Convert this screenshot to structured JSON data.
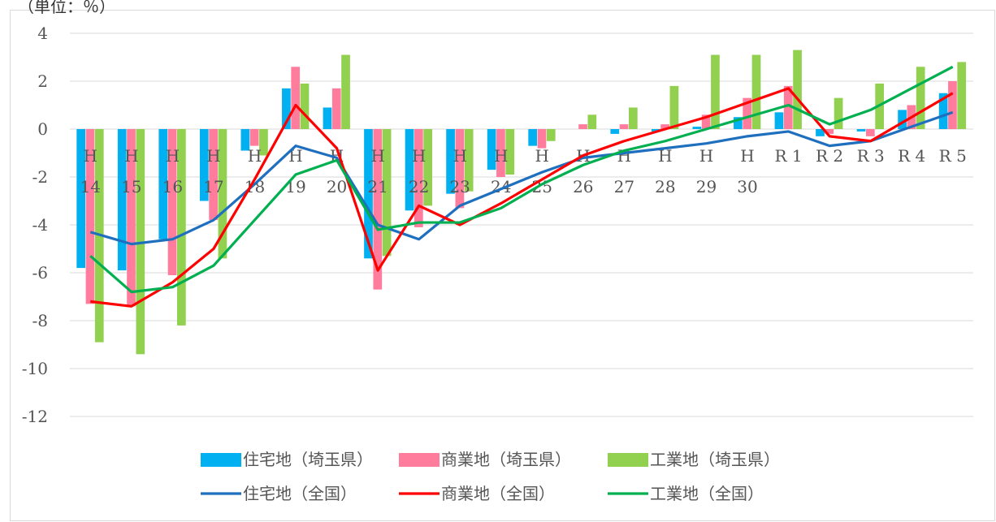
{
  "unit_label": "（単位：％）",
  "chart_data": {
    "type": "bar+line",
    "title": "",
    "xlabel": "",
    "ylabel": "",
    "ylim": [
      -12,
      4
    ],
    "yticks": [
      4,
      2,
      0,
      -2,
      -4,
      -6,
      -8,
      -10,
      -12
    ],
    "grid": true,
    "legend_position": "bottom",
    "categories": [
      [
        "H",
        "14"
      ],
      [
        "H",
        "15"
      ],
      [
        "H",
        "16"
      ],
      [
        "H",
        "17"
      ],
      [
        "H",
        "18"
      ],
      [
        "H",
        "19"
      ],
      [
        "H",
        "20"
      ],
      [
        "H",
        "21"
      ],
      [
        "H",
        "22"
      ],
      [
        "H",
        "23"
      ],
      [
        "H",
        "24"
      ],
      [
        "H",
        "25"
      ],
      [
        "H",
        "26"
      ],
      [
        "H",
        "27"
      ],
      [
        "H",
        "28"
      ],
      [
        "H",
        "29"
      ],
      [
        "H",
        "30"
      ],
      [
        "R 1",
        ""
      ],
      [
        "R 2",
        ""
      ],
      [
        "R 3",
        ""
      ],
      [
        "R 4",
        ""
      ],
      [
        "R 5",
        ""
      ]
    ],
    "bar_series": [
      {
        "name": "住宅地（埼玉県）",
        "color": "#00b0f0",
        "values": [
          -5.8,
          -5.9,
          -4.6,
          -3.0,
          -0.9,
          1.7,
          0.9,
          -5.4,
          -3.4,
          -2.7,
          -1.7,
          -0.7,
          0.0,
          -0.2,
          -0.1,
          0.1,
          0.5,
          0.7,
          -0.3,
          -0.1,
          0.8,
          1.5
        ]
      },
      {
        "name": "商業地（埼玉県）",
        "color": "#ff7c9c",
        "values": [
          -7.3,
          -7.4,
          -6.1,
          -3.8,
          -0.7,
          2.6,
          1.7,
          -6.7,
          -4.1,
          -3.3,
          -2.0,
          -0.8,
          0.2,
          0.2,
          0.2,
          0.6,
          1.3,
          1.8,
          -0.2,
          -0.3,
          1.0,
          2.0
        ]
      },
      {
        "name": "工業地（埼玉県）",
        "color": "#92d050",
        "values": [
          -8.9,
          -9.4,
          -8.2,
          -5.4,
          -1.1,
          1.9,
          3.1,
          -5.3,
          -3.2,
          -2.6,
          -1.9,
          -0.5,
          0.6,
          0.9,
          1.8,
          3.1,
          3.1,
          3.3,
          1.3,
          1.9,
          2.6,
          2.8
        ]
      }
    ],
    "line_series": [
      {
        "name": "住宅地（全国）",
        "color": "#1f6fbf",
        "values": [
          -4.3,
          -4.8,
          -4.6,
          -3.8,
          -2.3,
          -0.7,
          -1.2,
          -4.0,
          -4.6,
          -3.2,
          -2.5,
          -1.8,
          -1.2,
          -1.0,
          -0.8,
          -0.6,
          -0.3,
          -0.1,
          -0.7,
          -0.5,
          0.1,
          0.7
        ]
      },
      {
        "name": "商業地（全国）",
        "color": "#ff0000",
        "values": [
          -7.2,
          -7.4,
          -6.4,
          -5.0,
          -2.1,
          1.0,
          -0.8,
          -5.9,
          -3.2,
          -4.0,
          -3.1,
          -2.1,
          -1.1,
          -0.5,
          0.0,
          0.5,
          1.1,
          1.7,
          -0.3,
          -0.5,
          0.5,
          1.5
        ]
      },
      {
        "name": "工業地（全国）",
        "color": "#00b050",
        "values": [
          -5.3,
          -6.8,
          -6.6,
          -5.7,
          -3.8,
          -1.9,
          -1.3,
          -4.2,
          -3.9,
          -3.9,
          -3.3,
          -2.3,
          -1.5,
          -0.9,
          -0.5,
          0.0,
          0.5,
          1.0,
          0.2,
          0.8,
          1.7,
          2.6
        ]
      }
    ]
  }
}
